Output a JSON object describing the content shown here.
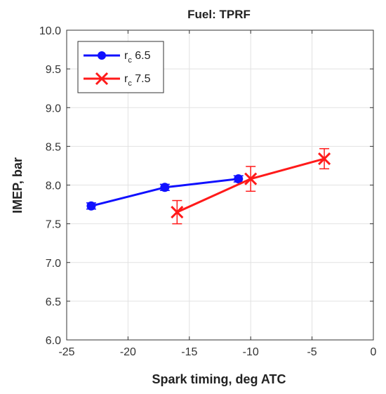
{
  "chart_data": {
    "type": "line",
    "title": "Fuel: TPRF",
    "xlabel": "Spark timing, deg ATC",
    "ylabel": "IMEP, bar",
    "xlim": [
      -25,
      0
    ],
    "ylim": [
      6.0,
      10.0
    ],
    "xticks": [
      "-25",
      "-20",
      "-15",
      "-10",
      "-5",
      "0"
    ],
    "yticks": [
      "6.0",
      "6.5",
      "7.0",
      "7.5",
      "8.0",
      "8.5",
      "9.0",
      "9.5",
      "10.0"
    ],
    "grid": true,
    "legend_position": "top-left",
    "series": [
      {
        "name": "rc 6.5",
        "legend_main": "r",
        "legend_sub": "c",
        "legend_tail": " 6.5",
        "color": "#1010ff",
        "marker": "circle",
        "x": [
          -23,
          -17,
          -11
        ],
        "y": [
          7.73,
          7.97,
          8.08
        ],
        "err": [
          0.04,
          0.04,
          0.04
        ]
      },
      {
        "name": "rc 7.5",
        "legend_main": "r",
        "legend_sub": "c",
        "legend_tail": " 7.5",
        "color": "#ff1a1a",
        "marker": "x",
        "x": [
          -16,
          -10,
          -4
        ],
        "y": [
          7.65,
          8.08,
          8.34
        ],
        "err": [
          0.15,
          0.16,
          0.13
        ]
      }
    ]
  }
}
